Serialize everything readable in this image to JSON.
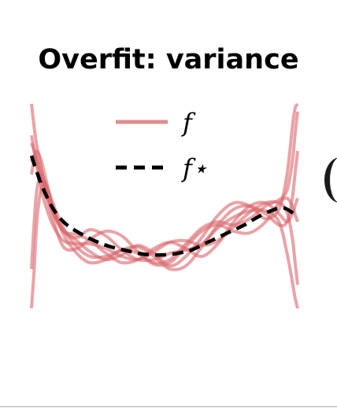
{
  "title": "Overfit: variance",
  "chart_data": {
    "type": "line",
    "title": "Overfit: variance",
    "xlabel": "",
    "ylabel": "",
    "xlim": [
      0,
      1
    ],
    "ylim": [
      -0.65,
      0.75
    ],
    "grid": false,
    "axes_visible": false,
    "legend": {
      "position": "top-center",
      "entries": [
        {
          "label": "f",
          "style": "solid",
          "color": "#d9656b"
        },
        {
          "label": "f⋆",
          "style": "dashed",
          "color": "#000000"
        }
      ]
    },
    "true_function": {
      "name": "f⋆",
      "color": "#000000",
      "x": [
        0.0,
        0.03,
        0.06,
        0.09,
        0.12,
        0.15,
        0.2,
        0.25,
        0.3,
        0.35,
        0.4,
        0.45,
        0.5,
        0.55,
        0.6,
        0.65,
        0.7,
        0.75,
        0.8,
        0.85,
        0.9,
        0.94,
        0.97,
        1.0
      ],
      "y": [
        0.42,
        0.27,
        0.15,
        0.06,
        0.0,
        -0.04,
        -0.09,
        -0.13,
        -0.16,
        -0.18,
        -0.2,
        -0.21,
        -0.21,
        -0.2,
        -0.18,
        -0.14,
        -0.1,
        -0.06,
        -0.02,
        0.03,
        0.07,
        0.09,
        0.07,
        0.03
      ]
    },
    "series": [
      {
        "color": "#d9656b",
        "x": [
          0.0,
          0.01,
          0.02,
          0.035,
          0.05,
          0.08,
          0.12,
          0.17,
          0.22,
          0.28,
          0.34,
          0.4,
          0.46,
          0.52,
          0.58,
          0.64,
          0.7,
          0.76,
          0.82,
          0.88,
          0.93,
          0.96,
          0.98,
          0.99,
          1.0
        ],
        "y": [
          -0.55,
          -0.3,
          0.0,
          0.2,
          0.25,
          0.08,
          -0.05,
          -0.12,
          -0.19,
          -0.24,
          -0.21,
          -0.15,
          -0.2,
          -0.28,
          -0.22,
          -0.1,
          0.04,
          0.12,
          0.1,
          0.02,
          0.08,
          0.3,
          0.6,
          0.72,
          0.75
        ]
      },
      {
        "color": "#d9656b",
        "x": [
          0.0,
          0.01,
          0.02,
          0.035,
          0.05,
          0.08,
          0.12,
          0.17,
          0.22,
          0.28,
          0.34,
          0.4,
          0.46,
          0.52,
          0.58,
          0.64,
          0.7,
          0.76,
          0.82,
          0.88,
          0.93,
          0.96,
          0.98,
          0.99,
          1.0
        ],
        "y": [
          0.75,
          0.6,
          0.48,
          0.35,
          0.22,
          0.07,
          -0.06,
          -0.1,
          -0.05,
          -0.09,
          -0.18,
          -0.24,
          -0.24,
          -0.2,
          -0.18,
          -0.14,
          -0.04,
          0.03,
          0.07,
          0.07,
          0.0,
          -0.2,
          -0.38,
          -0.48,
          -0.55
        ]
      },
      {
        "color": "#d9656b",
        "x": [
          0.0,
          0.01,
          0.02,
          0.035,
          0.05,
          0.08,
          0.12,
          0.17,
          0.22,
          0.28,
          0.34,
          0.4,
          0.46,
          0.52,
          0.58,
          0.64,
          0.7,
          0.76,
          0.82,
          0.88,
          0.93,
          0.96,
          0.98,
          0.99,
          1.0
        ],
        "y": [
          0.5,
          0.45,
          0.38,
          0.28,
          0.2,
          0.02,
          -0.16,
          -0.17,
          -0.11,
          -0.06,
          -0.09,
          -0.19,
          -0.27,
          -0.26,
          -0.16,
          -0.06,
          -0.02,
          -0.06,
          -0.07,
          0.0,
          0.12,
          0.15,
          0.1,
          0.05,
          0.0
        ]
      },
      {
        "color": "#d9656b",
        "x": [
          0.0,
          0.01,
          0.02,
          0.035,
          0.05,
          0.08,
          0.12,
          0.17,
          0.22,
          0.28,
          0.34,
          0.4,
          0.46,
          0.52,
          0.58,
          0.64,
          0.7,
          0.76,
          0.82,
          0.88,
          0.93,
          0.96,
          0.98,
          0.99,
          1.0
        ],
        "y": [
          0.3,
          0.4,
          0.45,
          0.4,
          0.3,
          0.1,
          -0.08,
          -0.2,
          -0.26,
          -0.24,
          -0.18,
          -0.16,
          -0.22,
          -0.3,
          -0.28,
          -0.16,
          -0.02,
          0.08,
          0.1,
          0.05,
          -0.02,
          0.0,
          0.15,
          0.3,
          0.45
        ]
      },
      {
        "color": "#d9656b",
        "x": [
          0.0,
          0.01,
          0.02,
          0.035,
          0.05,
          0.08,
          0.12,
          0.17,
          0.22,
          0.28,
          0.34,
          0.4,
          0.46,
          0.52,
          0.58,
          0.64,
          0.7,
          0.76,
          0.82,
          0.88,
          0.93,
          0.96,
          0.98,
          0.99,
          1.0
        ],
        "y": [
          0.55,
          0.45,
          0.35,
          0.22,
          0.12,
          -0.02,
          -0.12,
          -0.14,
          -0.14,
          -0.17,
          -0.22,
          -0.24,
          -0.19,
          -0.13,
          -0.12,
          -0.15,
          -0.12,
          -0.03,
          0.06,
          0.12,
          0.12,
          0.06,
          -0.1,
          -0.25,
          -0.4
        ]
      },
      {
        "color": "#d9656b",
        "x": [
          0.0,
          0.01,
          0.02,
          0.035,
          0.05,
          0.08,
          0.12,
          0.17,
          0.22,
          0.28,
          0.34,
          0.4,
          0.46,
          0.52,
          0.58,
          0.64,
          0.7,
          0.76,
          0.82,
          0.88,
          0.93,
          0.96,
          0.98,
          0.99,
          1.0
        ],
        "y": [
          0.38,
          0.42,
          0.4,
          0.32,
          0.22,
          0.06,
          -0.06,
          -0.08,
          -0.12,
          -0.2,
          -0.26,
          -0.24,
          -0.17,
          -0.13,
          -0.17,
          -0.22,
          -0.14,
          0.0,
          0.1,
          0.12,
          0.05,
          0.0,
          0.05,
          0.1,
          0.15
        ]
      },
      {
        "color": "#d9656b",
        "x": [
          0.0,
          0.01,
          0.02,
          0.035,
          0.05,
          0.08,
          0.12,
          0.17,
          0.22,
          0.28,
          0.34,
          0.4,
          0.46,
          0.52,
          0.58,
          0.64,
          0.7,
          0.76,
          0.82,
          0.88,
          0.93,
          0.96,
          0.98,
          0.99,
          1.0
        ],
        "y": [
          -0.3,
          0.0,
          0.2,
          0.3,
          0.26,
          0.12,
          -0.04,
          -0.16,
          -0.22,
          -0.22,
          -0.18,
          -0.2,
          -0.26,
          -0.24,
          -0.14,
          -0.04,
          0.0,
          -0.02,
          0.02,
          0.1,
          0.14,
          0.2,
          0.38,
          0.55,
          0.7
        ]
      }
    ]
  }
}
